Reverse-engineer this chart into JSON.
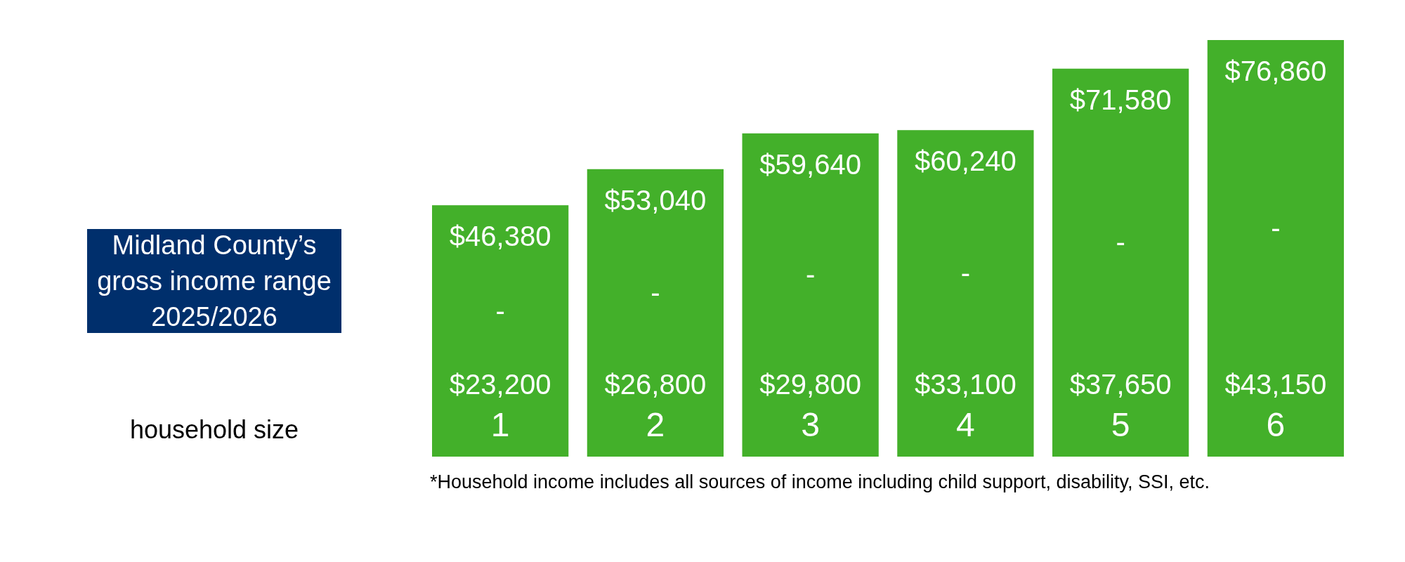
{
  "chart_data": {
    "type": "bar",
    "title": "Midland County’s gross income range 2025/2026",
    "xlabel": "household size",
    "categories": [
      "1",
      "2",
      "3",
      "4",
      "5",
      "6"
    ],
    "values": [
      46380,
      53040,
      59640,
      60240,
      71580,
      76860
    ],
    "value_labels": [
      "$46,380",
      "$53,040",
      "$59,640",
      "$60,240",
      "$71,580",
      "$76,860"
    ],
    "color": "#43b02a",
    "annotations": [
      "- $23,200",
      "- $26,800",
      "- $29,800",
      "- $33,100",
      "- $37,650",
      "- $43,150",
      "*Household income includes all sources of income including child support, disability, SSI, etc."
    ]
  }
}
